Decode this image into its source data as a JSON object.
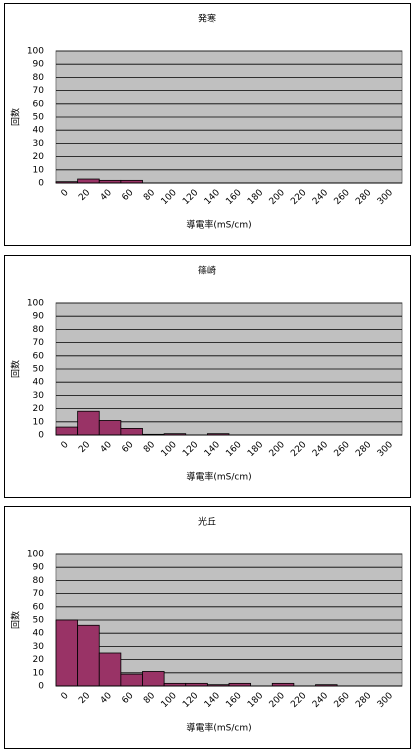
{
  "chart_data": [
    {
      "type": "bar",
      "title": "発寒",
      "y_label": "回数",
      "x_label": "導電率(mS/cm)",
      "categories": [
        "0",
        "20",
        "40",
        "60",
        "80",
        "100",
        "120",
        "140",
        "160",
        "180",
        "200",
        "220",
        "240",
        "260",
        "280",
        "300"
      ],
      "values": [
        1,
        3,
        2,
        2,
        0,
        0,
        0,
        0,
        0,
        0,
        0,
        0,
        0,
        0,
        0,
        0
      ],
      "color": "#993366",
      "ylim": [
        0,
        100
      ],
      "yticks": [
        0,
        10,
        20,
        30,
        40,
        50,
        60,
        70,
        80,
        90,
        100
      ],
      "grid": true
    },
    {
      "type": "bar",
      "title": "篠崎",
      "y_label": "回数",
      "x_label": "導電率(mS/cm)",
      "categories": [
        "0",
        "20",
        "40",
        "60",
        "80",
        "100",
        "120",
        "140",
        "160",
        "180",
        "200",
        "220",
        "240",
        "260",
        "280",
        "300"
      ],
      "values": [
        6,
        18,
        11,
        5,
        0.5,
        1,
        0,
        1,
        0,
        0,
        0,
        0,
        0,
        0,
        0,
        0
      ],
      "color": "#993366",
      "ylim": [
        0,
        100
      ],
      "yticks": [
        0,
        10,
        20,
        30,
        40,
        50,
        60,
        70,
        80,
        90,
        100
      ],
      "grid": true
    },
    {
      "type": "bar",
      "title": "光丘",
      "y_label": "回数",
      "x_label": "導電率(mS/cm)",
      "categories": [
        "0",
        "20",
        "40",
        "60",
        "80",
        "100",
        "120",
        "140",
        "160",
        "180",
        "200",
        "220",
        "240",
        "260",
        "280",
        "300"
      ],
      "values": [
        50,
        46,
        25,
        9,
        11,
        2,
        2,
        1,
        2,
        0,
        2,
        0,
        1,
        0,
        0,
        0
      ],
      "color": "#993366",
      "ylim": [
        0,
        100
      ],
      "yticks": [
        0,
        10,
        20,
        30,
        40,
        50,
        60,
        70,
        80,
        90,
        100
      ],
      "grid": true
    }
  ]
}
